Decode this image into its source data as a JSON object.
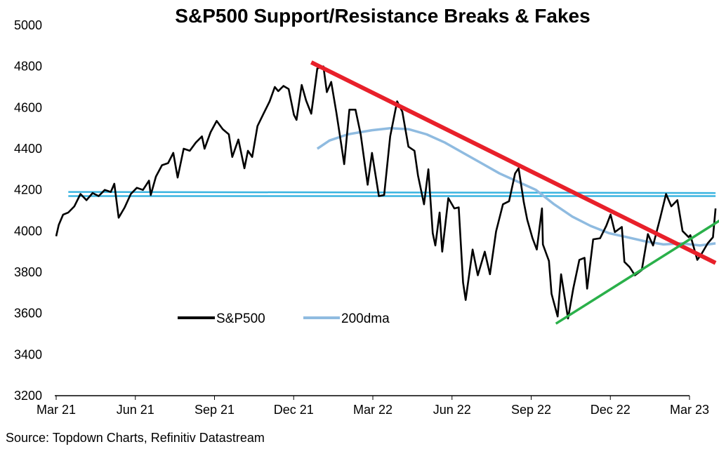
{
  "chart_data": {
    "type": "line",
    "title": "S&P500 Support/Resistance Breaks & Fakes",
    "source": "Source: Topdown Charts, Refinitiv Datastream",
    "ylim": [
      3200,
      5000
    ],
    "yticks": [
      "5000",
      "4800",
      "4600",
      "4400",
      "4200",
      "4000",
      "3800",
      "3600",
      "3400",
      "3200"
    ],
    "ytick_values": [
      5000,
      4800,
      4600,
      4400,
      4200,
      4000,
      3800,
      3600,
      3400,
      3200
    ],
    "xticks": [
      "Mar 21",
      "Jun 21",
      "Sep 21",
      "Dec 21",
      "Mar 22",
      "Jun 22",
      "Sep 22",
      "Dec 22",
      "Mar 23"
    ],
    "xlim": [
      "2021-03-01",
      "2023-03-01"
    ],
    "grid": false,
    "legend_position": "bottom-left",
    "series": [
      {
        "name": "S&P500",
        "color": "#000000",
        "points": [
          [
            "2021-03-01",
            3975
          ],
          [
            "2021-03-04",
            4030
          ],
          [
            "2021-03-09",
            4080
          ],
          [
            "2021-03-15",
            4090
          ],
          [
            "2021-03-22",
            4120
          ],
          [
            "2021-03-29",
            4180
          ],
          [
            "2021-04-05",
            4150
          ],
          [
            "2021-04-12",
            4185
          ],
          [
            "2021-04-19",
            4170
          ],
          [
            "2021-04-26",
            4200
          ],
          [
            "2021-05-03",
            4190
          ],
          [
            "2021-05-07",
            4230
          ],
          [
            "2021-05-12",
            4065
          ],
          [
            "2021-05-19",
            4115
          ],
          [
            "2021-05-26",
            4180
          ],
          [
            "2021-06-02",
            4210
          ],
          [
            "2021-06-09",
            4200
          ],
          [
            "2021-06-16",
            4245
          ],
          [
            "2021-06-18",
            4175
          ],
          [
            "2021-06-24",
            4265
          ],
          [
            "2021-07-01",
            4320
          ],
          [
            "2021-07-08",
            4330
          ],
          [
            "2021-07-14",
            4380
          ],
          [
            "2021-07-19",
            4260
          ],
          [
            "2021-07-26",
            4400
          ],
          [
            "2021-08-02",
            4390
          ],
          [
            "2021-08-09",
            4430
          ],
          [
            "2021-08-16",
            4460
          ],
          [
            "2021-08-19",
            4400
          ],
          [
            "2021-08-26",
            4480
          ],
          [
            "2021-09-02",
            4535
          ],
          [
            "2021-09-09",
            4495
          ],
          [
            "2021-09-16",
            4470
          ],
          [
            "2021-09-20",
            4360
          ],
          [
            "2021-09-27",
            4445
          ],
          [
            "2021-10-04",
            4305
          ],
          [
            "2021-10-08",
            4390
          ],
          [
            "2021-10-13",
            4360
          ],
          [
            "2021-10-19",
            4510
          ],
          [
            "2021-10-26",
            4570
          ],
          [
            "2021-11-02",
            4630
          ],
          [
            "2021-11-08",
            4700
          ],
          [
            "2021-11-12",
            4680
          ],
          [
            "2021-11-18",
            4705
          ],
          [
            "2021-11-24",
            4690
          ],
          [
            "2021-11-30",
            4565
          ],
          [
            "2021-12-03",
            4540
          ],
          [
            "2021-12-09",
            4710
          ],
          [
            "2021-12-14",
            4635
          ],
          [
            "2021-12-20",
            4570
          ],
          [
            "2021-12-27",
            4790
          ],
          [
            "2022-01-03",
            4800
          ],
          [
            "2022-01-07",
            4675
          ],
          [
            "2022-01-12",
            4725
          ],
          [
            "2022-01-18",
            4575
          ],
          [
            "2022-01-24",
            4410
          ],
          [
            "2022-01-27",
            4325
          ],
          [
            "2022-02-02",
            4590
          ],
          [
            "2022-02-09",
            4590
          ],
          [
            "2022-02-15",
            4470
          ],
          [
            "2022-02-23",
            4225
          ],
          [
            "2022-02-28",
            4380
          ],
          [
            "2022-03-08",
            4170
          ],
          [
            "2022-03-14",
            4175
          ],
          [
            "2022-03-21",
            4460
          ],
          [
            "2022-03-29",
            4630
          ],
          [
            "2022-04-04",
            4580
          ],
          [
            "2022-04-11",
            4410
          ],
          [
            "2022-04-18",
            4390
          ],
          [
            "2022-04-22",
            4270
          ],
          [
            "2022-04-29",
            4130
          ],
          [
            "2022-05-04",
            4300
          ],
          [
            "2022-05-09",
            3990
          ],
          [
            "2022-05-12",
            3930
          ],
          [
            "2022-05-17",
            4090
          ],
          [
            "2022-05-20",
            3900
          ],
          [
            "2022-05-27",
            4160
          ],
          [
            "2022-06-03",
            4110
          ],
          [
            "2022-06-08",
            4115
          ],
          [
            "2022-06-13",
            3750
          ],
          [
            "2022-06-16",
            3665
          ],
          [
            "2022-06-24",
            3910
          ],
          [
            "2022-06-30",
            3785
          ],
          [
            "2022-07-08",
            3900
          ],
          [
            "2022-07-14",
            3790
          ],
          [
            "2022-07-21",
            3998
          ],
          [
            "2022-07-29",
            4130
          ],
          [
            "2022-08-05",
            4145
          ],
          [
            "2022-08-12",
            4280
          ],
          [
            "2022-08-16",
            4305
          ],
          [
            "2022-08-22",
            4140
          ],
          [
            "2022-08-26",
            4055
          ],
          [
            "2022-09-01",
            3965
          ],
          [
            "2022-09-06",
            3910
          ],
          [
            "2022-09-12",
            4110
          ],
          [
            "2022-09-13",
            3935
          ],
          [
            "2022-09-20",
            3855
          ],
          [
            "2022-09-23",
            3695
          ],
          [
            "2022-09-30",
            3585
          ],
          [
            "2022-10-04",
            3790
          ],
          [
            "2022-10-12",
            3575
          ],
          [
            "2022-10-18",
            3720
          ],
          [
            "2022-10-25",
            3860
          ],
          [
            "2022-10-31",
            3870
          ],
          [
            "2022-11-03",
            3720
          ],
          [
            "2022-11-10",
            3960
          ],
          [
            "2022-11-18",
            3965
          ],
          [
            "2022-11-25",
            4025
          ],
          [
            "2022-11-30",
            4080
          ],
          [
            "2022-12-05",
            3995
          ],
          [
            "2022-12-13",
            4020
          ],
          [
            "2022-12-16",
            3850
          ],
          [
            "2022-12-22",
            3825
          ],
          [
            "2022-12-28",
            3785
          ],
          [
            "2023-01-05",
            3810
          ],
          [
            "2023-01-12",
            3985
          ],
          [
            "2023-01-18",
            3930
          ],
          [
            "2023-01-26",
            4060
          ],
          [
            "2023-02-02",
            4180
          ],
          [
            "2023-02-08",
            4120
          ],
          [
            "2023-02-15",
            4150
          ],
          [
            "2023-02-21",
            4000
          ],
          [
            "2023-02-28",
            3970
          ],
          [
            "2023-03-02",
            3980
          ],
          [
            "2023-03-10",
            3860
          ],
          [
            "2023-03-15",
            3890
          ],
          [
            "2023-03-22",
            3940
          ],
          [
            "2023-03-28",
            3970
          ],
          [
            "2023-03-31",
            4110
          ]
        ]
      },
      {
        "name": "200dma",
        "color": "#8fbbe0",
        "points": [
          [
            "2021-12-27",
            4400
          ],
          [
            "2022-01-10",
            4440
          ],
          [
            "2022-01-31",
            4470
          ],
          [
            "2022-02-28",
            4490
          ],
          [
            "2022-03-21",
            4500
          ],
          [
            "2022-04-11",
            4495
          ],
          [
            "2022-05-02",
            4470
          ],
          [
            "2022-05-23",
            4430
          ],
          [
            "2022-06-13",
            4380
          ],
          [
            "2022-07-04",
            4330
          ],
          [
            "2022-07-25",
            4280
          ],
          [
            "2022-08-15",
            4240
          ],
          [
            "2022-09-05",
            4200
          ],
          [
            "2022-09-26",
            4130
          ],
          [
            "2022-10-17",
            4070
          ],
          [
            "2022-11-07",
            4025
          ],
          [
            "2022-11-28",
            3990
          ],
          [
            "2022-12-19",
            3970
          ],
          [
            "2023-01-09",
            3950
          ],
          [
            "2023-01-30",
            3935
          ],
          [
            "2023-02-20",
            3940
          ],
          [
            "2023-03-13",
            3930
          ],
          [
            "2023-03-31",
            3940
          ]
        ]
      }
    ],
    "reference_lines": [
      {
        "kind": "horizontal-support",
        "color": "#3ab4e0",
        "points": [
          [
            "2021-03-15",
            4190
          ],
          [
            "2023-03-31",
            4185
          ]
        ]
      },
      {
        "kind": "horizontal-support",
        "color": "#3ab4e0",
        "points": [
          [
            "2021-03-15",
            4170
          ],
          [
            "2023-03-31",
            4170
          ]
        ]
      },
      {
        "kind": "downtrend-resistance",
        "color": "#e8202a",
        "points": [
          [
            "2021-12-20",
            4820
          ],
          [
            "2023-03-31",
            3845
          ]
        ]
      },
      {
        "kind": "uptrend-support",
        "color": "#2ab04a",
        "points": [
          [
            "2022-09-28",
            3550
          ],
          [
            "2023-04-10",
            4065
          ]
        ]
      }
    ]
  }
}
